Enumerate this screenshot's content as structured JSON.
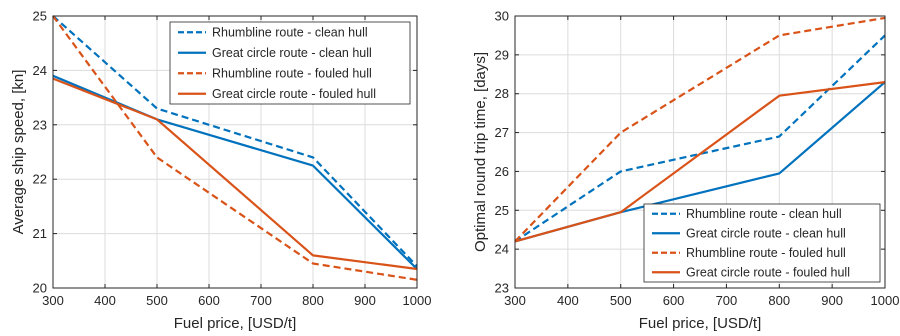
{
  "chart_data": [
    {
      "type": "line",
      "xlabel": "Fuel price, [USD/t]",
      "ylabel": "Average ship speed, [kn]",
      "xlim": [
        300,
        1000
      ],
      "ylim": [
        20,
        25
      ],
      "xticks": [
        300,
        400,
        500,
        600,
        700,
        800,
        900,
        1000
      ],
      "yticks": [
        20,
        21,
        22,
        23,
        24,
        25
      ],
      "grid": true,
      "legend_position": "top-right",
      "x": [
        300,
        500,
        800,
        1000
      ],
      "series": [
        {
          "name": "Rhumbline route - clean hull",
          "color": "#0072BD",
          "style": "dashed",
          "values": [
            25.0,
            23.3,
            22.4,
            20.4
          ]
        },
        {
          "name": "Great circle route - clean hull",
          "color": "#0072BD",
          "style": "solid",
          "values": [
            23.9,
            23.1,
            22.25,
            20.35
          ]
        },
        {
          "name": "Rhumbline route - fouled hull",
          "color": "#D95319",
          "style": "dashed",
          "values": [
            25.0,
            22.4,
            20.45,
            20.15
          ]
        },
        {
          "name": "Great circle route - fouled hull",
          "color": "#D95319",
          "style": "solid",
          "values": [
            23.85,
            23.1,
            20.6,
            20.35
          ]
        }
      ]
    },
    {
      "type": "line",
      "xlabel": "Fuel price, [USD/t]",
      "ylabel": "Optimal round trip time, [days]",
      "xlim": [
        300,
        1000
      ],
      "ylim": [
        23,
        30
      ],
      "xticks": [
        300,
        400,
        500,
        600,
        700,
        800,
        900,
        1000
      ],
      "yticks": [
        23,
        24,
        25,
        26,
        27,
        28,
        29,
        30
      ],
      "grid": true,
      "legend_position": "bottom-right",
      "x": [
        300,
        500,
        800,
        1000
      ],
      "series": [
        {
          "name": "Rhumbline route - clean hull",
          "color": "#0072BD",
          "style": "dashed",
          "values": [
            24.2,
            26.0,
            26.9,
            29.5
          ]
        },
        {
          "name": "Great circle route - clean hull",
          "color": "#0072BD",
          "style": "solid",
          "values": [
            24.2,
            24.95,
            25.95,
            28.3
          ]
        },
        {
          "name": "Rhumbline route - fouled hull",
          "color": "#D95319",
          "style": "dashed",
          "values": [
            24.2,
            27.0,
            29.5,
            29.95
          ]
        },
        {
          "name": "Great circle route - fouled hull",
          "color": "#D95319",
          "style": "solid",
          "values": [
            24.2,
            24.95,
            27.95,
            28.3
          ]
        }
      ]
    }
  ]
}
